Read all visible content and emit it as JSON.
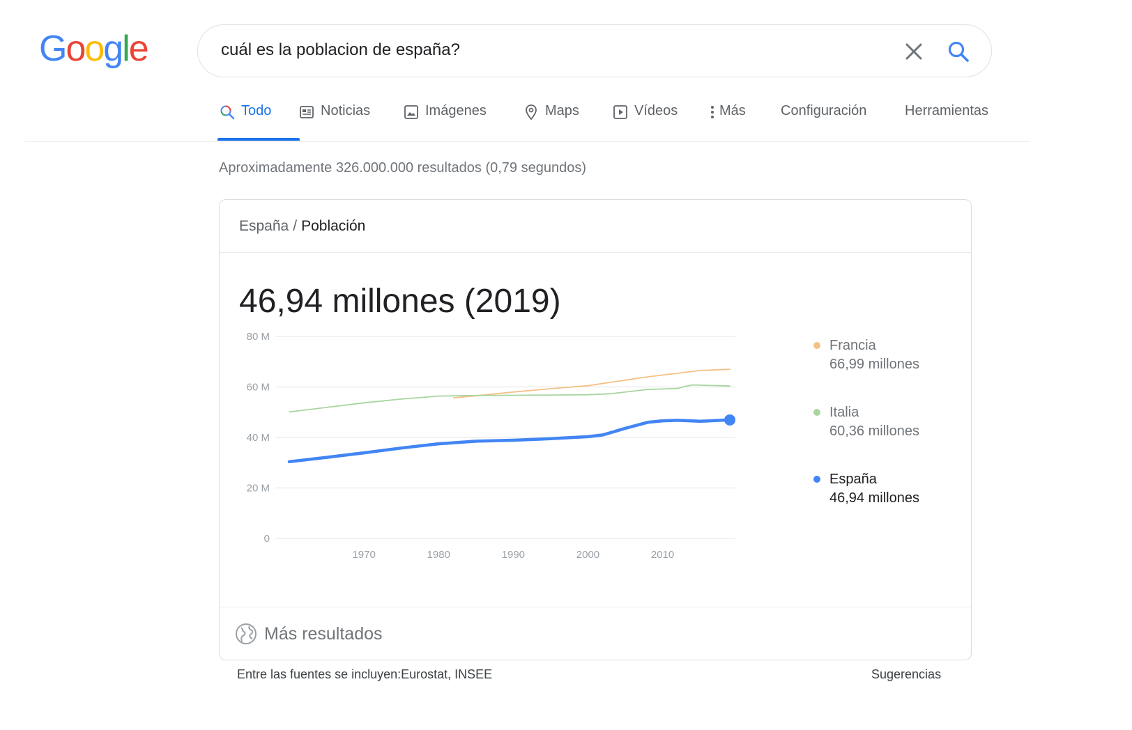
{
  "logo": {
    "letters": [
      "G",
      "o",
      "o",
      "g",
      "l",
      "e"
    ],
    "colors": [
      "#4285f4",
      "#ea4335",
      "#fbbc05",
      "#4285f4",
      "#34a853",
      "#ea4335"
    ]
  },
  "search": {
    "query": "cuál es la poblacion de españa?",
    "clear_icon": "close-icon",
    "search_icon": "search-icon"
  },
  "tabs": [
    {
      "label": "Todo",
      "icon": "search-icon",
      "active": true
    },
    {
      "label": "Noticias",
      "icon": "news-icon"
    },
    {
      "label": "Imágenes",
      "icon": "image-icon"
    },
    {
      "label": "Maps",
      "icon": "location-pin-icon"
    },
    {
      "label": "Vídeos",
      "icon": "play-icon"
    },
    {
      "label": "Más",
      "icon": "more-vertical-icon"
    },
    {
      "label": "Configuración"
    },
    {
      "label": "Herramientas"
    }
  ],
  "stats": "Aproximadamente 326.000.000 resultados (0,79 segundos)",
  "card": {
    "breadcrumb_country": "España",
    "breadcrumb_sep": "/",
    "breadcrumb_topic": "Población",
    "headline": "46,94 millones (2019)",
    "more_results": "Más resultados",
    "more_icon": "globe-icon"
  },
  "legend": [
    {
      "name": "Francia",
      "value": "66,99 millones",
      "color": "#f5c086"
    },
    {
      "name": "Italia",
      "value": "60,36 millones",
      "color": "#a8d5a0"
    },
    {
      "name": "España",
      "value": "46,94 millones",
      "color": "#4285f4"
    }
  ],
  "footer": {
    "sources": "Entre las fuentes se incluyen:Eurostat, INSEE",
    "suggest": "Sugerencias"
  },
  "chart_data": {
    "type": "line",
    "title": "",
    "xlabel": "",
    "ylabel": "",
    "xlim": [
      1960,
      2019
    ],
    "ylim": [
      0,
      80
    ],
    "y_ticks": [
      0,
      20,
      40,
      60,
      80
    ],
    "y_tick_labels": [
      "0",
      "20 M",
      "40 M",
      "60 M",
      "80 M"
    ],
    "x_ticks": [
      1970,
      1980,
      1990,
      2000,
      2010
    ],
    "x_tick_labels": [
      "1970",
      "1980",
      "1990",
      "2000",
      "2010"
    ],
    "grid": true,
    "legend_position": "right",
    "series": [
      {
        "name": "Francia",
        "color": "#f5c086",
        "x": [
          1982,
          1985,
          1990,
          1995,
          2000,
          2005,
          2008,
          2012,
          2015,
          2019
        ],
        "y": [
          55.7,
          56.5,
          58.0,
          59.3,
          60.5,
          62.7,
          64.0,
          65.4,
          66.5,
          66.99
        ]
      },
      {
        "name": "Italia",
        "color": "#a8d5a0",
        "x": [
          1960,
          1965,
          1970,
          1975,
          1980,
          1985,
          1990,
          1995,
          2000,
          2003,
          2008,
          2012,
          2013,
          2014,
          2019
        ],
        "y": [
          50.1,
          51.9,
          53.7,
          55.2,
          56.4,
          56.6,
          56.7,
          56.8,
          56.9,
          57.3,
          59.0,
          59.4,
          60.2,
          60.8,
          60.36
        ]
      },
      {
        "name": "España",
        "color": "#4285f4",
        "x": [
          1960,
          1965,
          1970,
          1975,
          1980,
          1985,
          1990,
          1995,
          2000,
          2002,
          2005,
          2008,
          2010,
          2012,
          2015,
          2019
        ],
        "y": [
          30.4,
          32.1,
          33.9,
          35.8,
          37.5,
          38.5,
          38.9,
          39.5,
          40.3,
          41.0,
          43.6,
          46.0,
          46.6,
          46.8,
          46.4,
          46.94
        ]
      }
    ]
  }
}
